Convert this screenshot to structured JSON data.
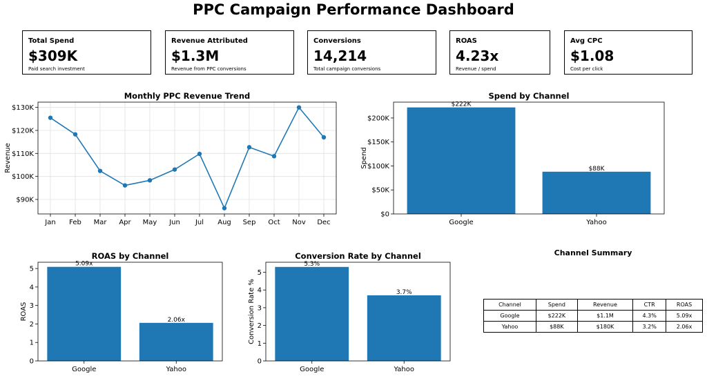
{
  "page": {
    "title": "PPC Campaign Performance Dashboard"
  },
  "kpis": [
    {
      "label": "Total Spend",
      "value": "$309K",
      "sub": "Paid search investment"
    },
    {
      "label": "Revenue Attributed",
      "value": "$1.3M",
      "sub": "Revenue from PPC conversions"
    },
    {
      "label": "Conversions",
      "value": "14,214",
      "sub": "Total campaign conversions"
    },
    {
      "label": "ROAS",
      "value": "4.23x",
      "sub": "Revenue / spend"
    },
    {
      "label": "Avg CPC",
      "value": "$1.08",
      "sub": "Cost per click"
    }
  ],
  "chart_data": [
    {
      "type": "line",
      "title": "Monthly PPC Revenue Trend",
      "xlabel": "",
      "ylabel": "Revenue",
      "categories": [
        "Jan",
        "Feb",
        "Mar",
        "Apr",
        "May",
        "Jun",
        "Jul",
        "Aug",
        "Sep",
        "Oct",
        "Nov",
        "Dec"
      ],
      "values": [
        125500,
        118300,
        102400,
        96100,
        98300,
        103000,
        109800,
        86200,
        112700,
        108800,
        130000,
        117000
      ],
      "yticks": [
        90000,
        100000,
        110000,
        120000,
        130000
      ],
      "ytick_labels": [
        "$90K",
        "$100K",
        "$110K",
        "$120K",
        "$130K"
      ],
      "ylim": [
        83700,
        132300
      ],
      "grid": true,
      "color": "#1f77b4"
    },
    {
      "type": "bar",
      "title": "Spend by Channel",
      "xlabel": "",
      "ylabel": "Spend",
      "categories": [
        "Google",
        "Yahoo"
      ],
      "values": [
        222000,
        88000
      ],
      "data_labels": [
        "$222K",
        "$88K"
      ],
      "yticks": [
        0,
        50000,
        100000,
        150000,
        200000
      ],
      "ytick_labels": [
        "$0",
        "$50K",
        "$100K",
        "$150K",
        "$200K"
      ],
      "ylim": [
        0,
        233000
      ],
      "color": "#1f77b4"
    },
    {
      "type": "bar",
      "title": "ROAS by Channel",
      "xlabel": "",
      "ylabel": "ROAS",
      "categories": [
        "Google",
        "Yahoo"
      ],
      "values": [
        5.09,
        2.06
      ],
      "data_labels": [
        "5.09x",
        "2.06x"
      ],
      "yticks": [
        0,
        1,
        2,
        3,
        4,
        5
      ],
      "ytick_labels": [
        "0",
        "1",
        "2",
        "3",
        "4",
        "5"
      ],
      "ylim": [
        0,
        5.34
      ],
      "color": "#1f77b4"
    },
    {
      "type": "bar",
      "title": "Conversion Rate by Channel",
      "xlabel": "",
      "ylabel": "Conversion Rate %",
      "categories": [
        "Google",
        "Yahoo"
      ],
      "values": [
        5.3,
        3.7
      ],
      "data_labels": [
        "5.3%",
        "3.7%"
      ],
      "yticks": [
        0,
        1,
        2,
        3,
        4,
        5
      ],
      "ytick_labels": [
        "0",
        "1",
        "2",
        "3",
        "4",
        "5"
      ],
      "ylim": [
        0,
        5.565
      ],
      "color": "#1f77b4"
    },
    {
      "type": "table",
      "title": "Channel Summary",
      "columns": [
        "Channel",
        "Spend",
        "Revenue",
        "CTR",
        "ROAS"
      ],
      "rows": [
        [
          "Google",
          "$222K",
          "$1.1M",
          "4.3%",
          "5.09x"
        ],
        [
          "Yahoo",
          "$88K",
          "$180K",
          "3.2%",
          "2.06x"
        ]
      ]
    }
  ]
}
